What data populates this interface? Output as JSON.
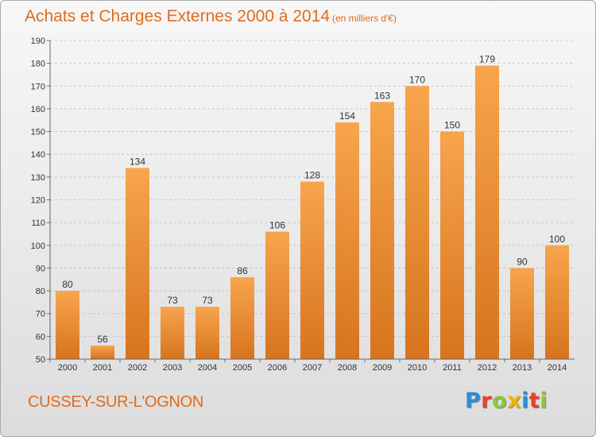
{
  "header": {
    "title": "Achats et Charges Externes 2000 à 2014",
    "subtitle": "(en milliers d'€)"
  },
  "footer": {
    "city": "CUSSEY-SUR-L'OGNON",
    "logo": [
      "P",
      "r",
      "o",
      "x",
      "i",
      "t",
      "i"
    ],
    "logo_colors": [
      "#2a8fd6",
      "#e8402b",
      "#8cc63e",
      "#f2b200",
      "#2a8fd6",
      "#e8402b",
      "#8cc63e"
    ]
  },
  "chart_data": {
    "type": "bar",
    "categories": [
      "2000",
      "2001",
      "2002",
      "2003",
      "2004",
      "2005",
      "2006",
      "2007",
      "2008",
      "2009",
      "2010",
      "2011",
      "2012",
      "2013",
      "2014"
    ],
    "values": [
      80,
      56,
      134,
      73,
      73,
      86,
      106,
      128,
      154,
      163,
      170,
      150,
      179,
      90,
      100
    ],
    "data_labels": [
      "80",
      "56",
      "134",
      "73",
      "73",
      "86",
      "106",
      "128",
      "154",
      "163",
      "170",
      "150",
      "179",
      "90",
      "100"
    ],
    "ylim": [
      50,
      190
    ],
    "yticks": [
      "50",
      "60",
      "70",
      "80",
      "90",
      "100",
      "110",
      "120",
      "130",
      "140",
      "150",
      "160",
      "170",
      "180",
      "190"
    ],
    "grid": true,
    "colors": {
      "bar_light": "#f7a54d",
      "bar_dark": "#d7741e",
      "grid": "#bbbbbb"
    }
  }
}
